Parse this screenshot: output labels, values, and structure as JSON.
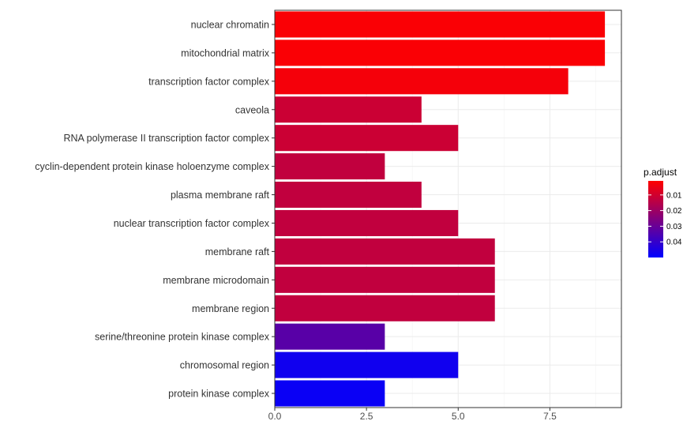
{
  "chart_data": {
    "type": "bar",
    "orientation": "horizontal",
    "categories": [
      "nuclear chromatin",
      "mitochondrial matrix",
      "transcription factor complex",
      "caveola",
      "RNA polymerase II transcription factor complex",
      "cyclin-dependent protein kinase holoenzyme complex",
      "plasma membrane raft",
      "nuclear transcription factor complex",
      "membrane raft",
      "membrane microdomain",
      "membrane region",
      "serine/threonine protein kinase complex",
      "chromosomal region",
      "protein kinase complex"
    ],
    "values": [
      9,
      9,
      8,
      4,
      5,
      3,
      4,
      5,
      6,
      6,
      6,
      3,
      5,
      3
    ],
    "p_adjust": [
      0.002,
      0.002,
      0.003,
      0.011,
      0.011,
      0.013,
      0.013,
      0.013,
      0.013,
      0.013,
      0.013,
      0.033,
      0.047,
      0.048
    ],
    "xlim": [
      0,
      9.45
    ],
    "xticks": [
      "0.0",
      "2.5",
      "5.0",
      "7.5"
    ],
    "xtick_values": [
      0,
      2.5,
      5,
      7.5
    ],
    "xlabel": "",
    "ylabel": "",
    "grid": true,
    "legend": {
      "title": "p.adjust",
      "placement": "right",
      "labels": [
        "0.01",
        "0.02",
        "0.03",
        "0.04"
      ],
      "values": [
        0.01,
        0.02,
        0.03,
        0.04
      ],
      "range": [
        0.001,
        0.05
      ]
    },
    "colors": {
      "low": "#ff0000",
      "high": "#0000ff",
      "grid": "#ebebeb",
      "panel_border": "#333333"
    }
  }
}
